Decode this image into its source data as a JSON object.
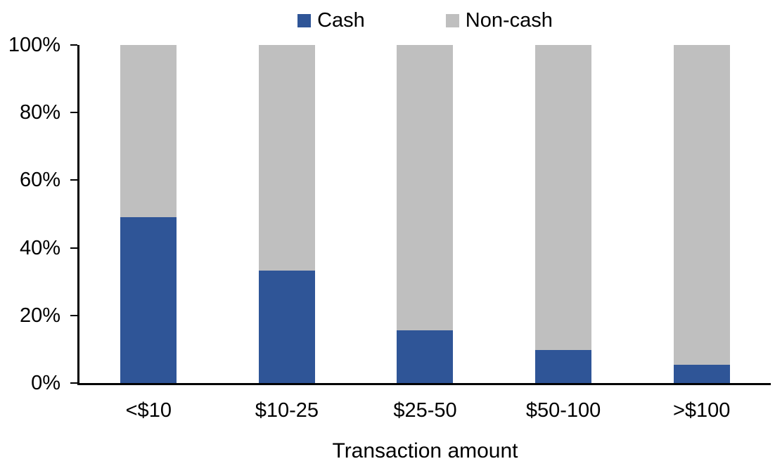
{
  "chart_data": {
    "type": "bar",
    "stacked": true,
    "percent_stacked": true,
    "title": "",
    "xlabel": "Transaction amount",
    "ylabel": "",
    "categories": [
      "<$10",
      "$10-25",
      "$25-50",
      "$50-100",
      ">$100"
    ],
    "series": [
      {
        "name": "Cash",
        "color": "#2F5597",
        "values": [
          49.0,
          33.3,
          15.6,
          9.7,
          5.5
        ]
      },
      {
        "name": "Non-cash",
        "color": "#BFBFBF",
        "values": [
          51.0,
          66.7,
          84.4,
          90.3,
          94.5
        ]
      }
    ],
    "ylim": [
      0,
      100
    ],
    "yticks": [
      {
        "value": 0,
        "label": "0%"
      },
      {
        "value": 20,
        "label": "20%"
      },
      {
        "value": 40,
        "label": "40%"
      },
      {
        "value": 60,
        "label": "60%"
      },
      {
        "value": 80,
        "label": "80%"
      },
      {
        "value": 100,
        "label": "100%"
      }
    ],
    "grid": false,
    "legend_position": "top-center",
    "axis_color": "#000000",
    "background_color": "#ffffff"
  }
}
